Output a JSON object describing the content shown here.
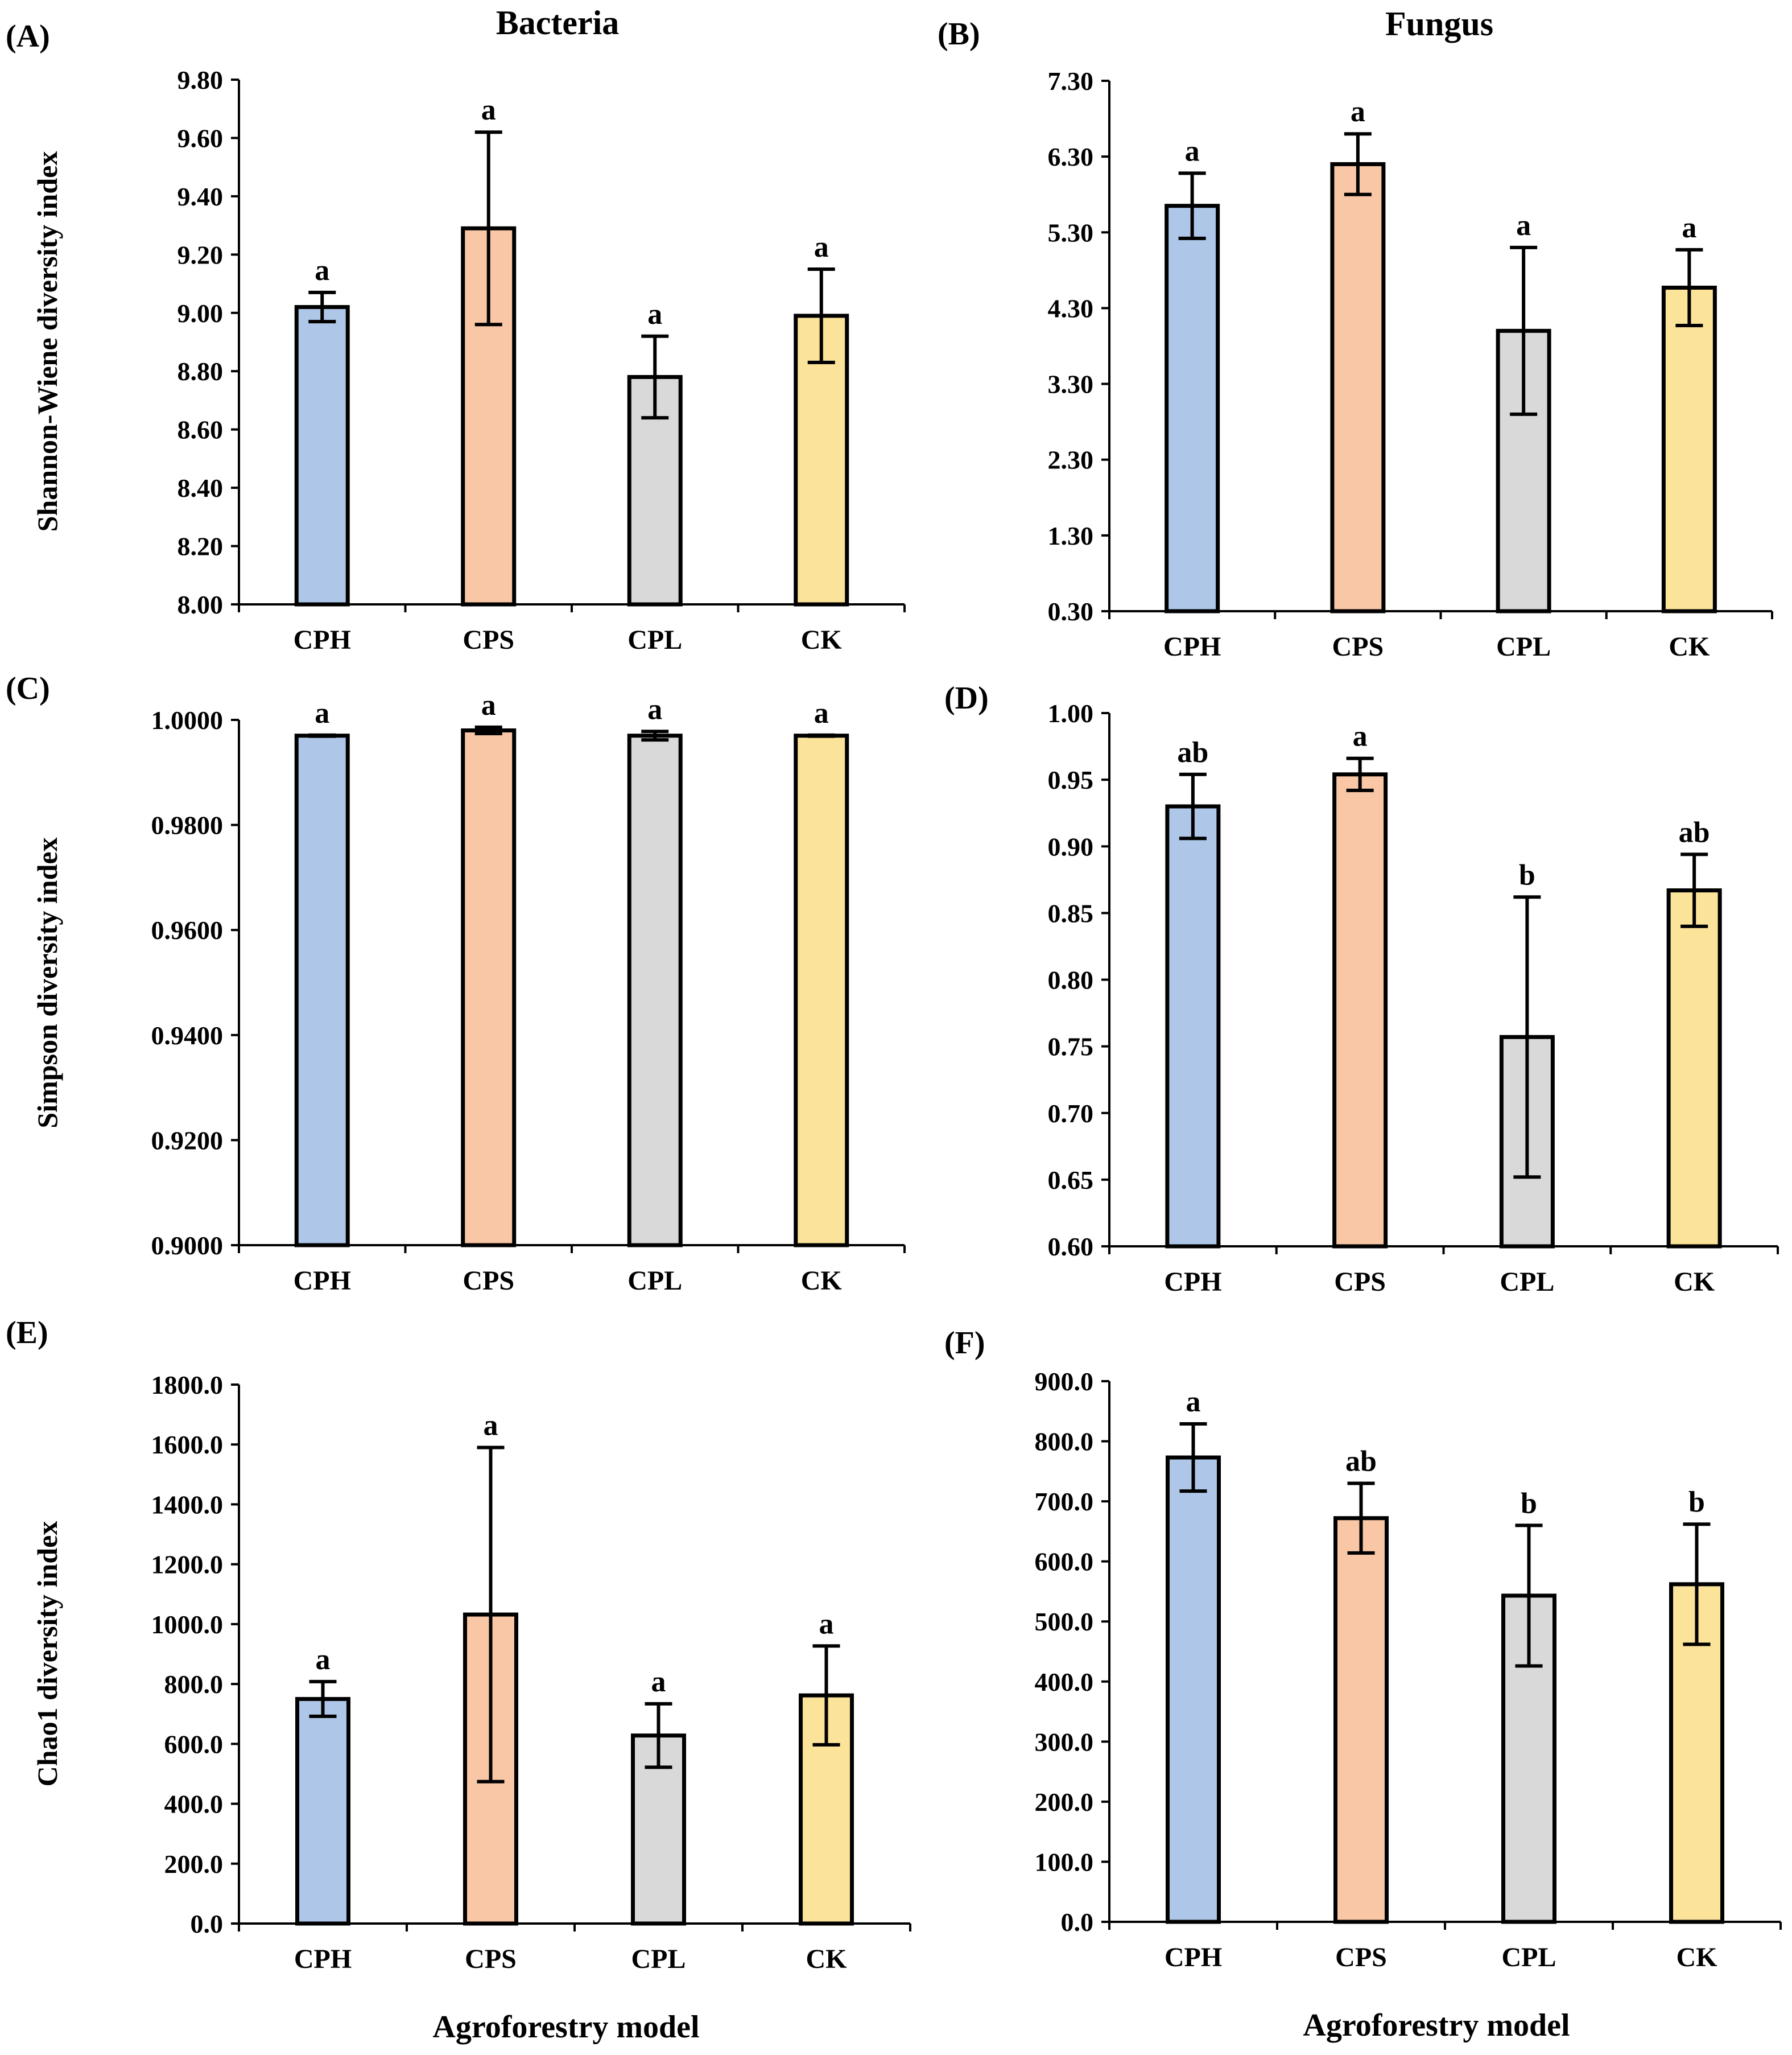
{
  "column_titles": [
    "Bacteria",
    "Fungus"
  ],
  "x_axis_title": "Agroforestry model",
  "colors": {
    "CPH": "#aec7e8",
    "CPS": "#f9c7a6",
    "CPL": "#d9d9d9",
    "CK": "#fbe39a"
  },
  "chart_data": [
    {
      "id": "A",
      "panel_label": "(A)",
      "type": "bar",
      "title": "Bacteria",
      "ylabel": "Shannon-Wiene diversity index",
      "xlabel": "",
      "categories": [
        "CPH",
        "CPS",
        "CPL",
        "CK"
      ],
      "values": [
        9.02,
        9.29,
        8.78,
        8.99
      ],
      "errors": [
        0.05,
        0.33,
        0.14,
        0.16
      ],
      "significance": [
        "a",
        "a",
        "a",
        "a"
      ],
      "ylim": [
        8.0,
        9.8
      ],
      "yticks": [
        "8.00",
        "8.20",
        "8.40",
        "8.60",
        "8.80",
        "9.00",
        "9.20",
        "9.40",
        "9.60",
        "9.80"
      ]
    },
    {
      "id": "B",
      "panel_label": "(B)",
      "type": "bar",
      "title": "Fungus",
      "ylabel": "",
      "xlabel": "",
      "categories": [
        "CPH",
        "CPS",
        "CPL",
        "CK"
      ],
      "values": [
        5.65,
        6.2,
        4.0,
        4.57
      ],
      "errors": [
        0.43,
        0.4,
        1.1,
        0.5
      ],
      "significance": [
        "a",
        "a",
        "a",
        "a"
      ],
      "ylim": [
        0.3,
        7.3
      ],
      "yticks": [
        "0.30",
        "1.30",
        "2.30",
        "3.30",
        "4.30",
        "5.30",
        "6.30",
        "7.30"
      ]
    },
    {
      "id": "C",
      "panel_label": "(C)",
      "type": "bar",
      "ylabel": "Simpson diversity index",
      "xlabel": "",
      "categories": [
        "CPH",
        "CPS",
        "CPL",
        "CK"
      ],
      "values": [
        0.997,
        0.998,
        0.997,
        0.997
      ],
      "errors": [
        0.0001,
        0.0006,
        0.0008,
        0.0001
      ],
      "significance": [
        "a",
        "a",
        "a",
        "a"
      ],
      "ylim": [
        0.9,
        1.0
      ],
      "yticks": [
        "0.9000",
        "0.9200",
        "0.9400",
        "0.9600",
        "0.9800",
        "1.0000"
      ]
    },
    {
      "id": "D",
      "panel_label": "(D)",
      "type": "bar",
      "ylabel": "",
      "xlabel": "",
      "categories": [
        "CPH",
        "CPS",
        "CPL",
        "CK"
      ],
      "values": [
        0.93,
        0.954,
        0.757,
        0.867
      ],
      "errors": [
        0.024,
        0.012,
        0.105,
        0.027
      ],
      "significance": [
        "ab",
        "a",
        "b",
        "ab"
      ],
      "ylim": [
        0.6,
        1.0
      ],
      "yticks": [
        "0.60",
        "0.65",
        "0.70",
        "0.75",
        "0.80",
        "0.85",
        "0.90",
        "0.95",
        "1.00"
      ]
    },
    {
      "id": "E",
      "panel_label": "(E)",
      "type": "bar",
      "ylabel": "Chao1 diversity index",
      "xlabel": "Agroforestry model",
      "categories": [
        "CPH",
        "CPS",
        "CPL",
        "CK"
      ],
      "values": [
        750,
        1032,
        628,
        762
      ],
      "errors": [
        58,
        558,
        106,
        165
      ],
      "significance": [
        "a",
        "a",
        "a",
        "a"
      ],
      "ylim": [
        0,
        1800
      ],
      "yticks": [
        "0.0",
        "200.0",
        "400.0",
        "600.0",
        "800.0",
        "1000.0",
        "1200.0",
        "1400.0",
        "1600.0",
        "1800.0"
      ]
    },
    {
      "id": "F",
      "panel_label": "(F)",
      "type": "bar",
      "ylabel": "",
      "xlabel": "Agroforestry model",
      "categories": [
        "CPH",
        "CPS",
        "CPL",
        "CK"
      ],
      "values": [
        773,
        672,
        543,
        562
      ],
      "errors": [
        56,
        58,
        117,
        100
      ],
      "significance": [
        "a",
        "ab",
        "b",
        "b"
      ],
      "ylim": [
        0,
        900
      ],
      "yticks": [
        "0.0",
        "100.0",
        "200.0",
        "300.0",
        "400.0",
        "500.0",
        "600.0",
        "700.0",
        "800.0",
        "900.0"
      ]
    }
  ]
}
